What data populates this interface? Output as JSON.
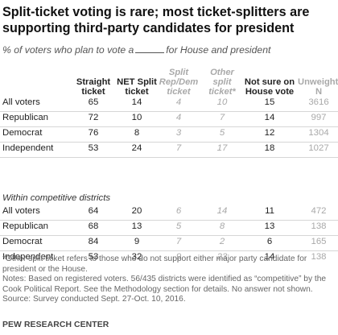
{
  "title": "Split-ticket voting is rare; most ticket-splitters are supporting third-party candidates for president",
  "subtitle_before": "% of voters who plan to vote a",
  "subtitle_after": "for House and president",
  "chart_data": {
    "type": "table",
    "columns": [
      {
        "key": "straight",
        "label": "Straight ticket",
        "style": "bold"
      },
      {
        "key": "net_split",
        "label": "NET Split ticket",
        "style": "bold"
      },
      {
        "key": "rep_dem",
        "label": "Split Rep/Dem ticket",
        "style": "grey"
      },
      {
        "key": "other_split",
        "label": "Other split ticket*",
        "style": "grey"
      },
      {
        "key": "not_sure",
        "label": "Not sure on House vote",
        "style": "bold"
      },
      {
        "key": "unweighted",
        "label": "Unweighted N",
        "style": "unw"
      }
    ],
    "sections": [
      {
        "label": "",
        "rows": [
          {
            "label": "All voters",
            "values": [
              "65",
              "14",
              "4",
              "10",
              "15",
              "3616"
            ]
          },
          {
            "label": "Republican",
            "values": [
              "72",
              "10",
              "4",
              "7",
              "14",
              "997"
            ]
          },
          {
            "label": "Democrat",
            "values": [
              "76",
              "8",
              "3",
              "5",
              "12",
              "1304"
            ]
          },
          {
            "label": "Independent",
            "values": [
              "53",
              "24",
              "7",
              "17",
              "18",
              "1027"
            ]
          }
        ]
      },
      {
        "label": "Within competitive districts",
        "rows": [
          {
            "label": "All voters",
            "values": [
              "64",
              "20",
              "6",
              "14",
              "11",
              "472"
            ]
          },
          {
            "label": "Republican",
            "values": [
              "68",
              "13",
              "5",
              "8",
              "13",
              "138"
            ]
          },
          {
            "label": "Democrat",
            "values": [
              "84",
              "9",
              "7",
              "2",
              "6",
              "165"
            ]
          },
          {
            "label": "Independent",
            "values": [
              "53",
              "32",
              "9",
              "23",
              "14",
              "138"
            ]
          }
        ]
      }
    ]
  },
  "notes": [
    "*Other split ticket refers to those who do not support either major party candidate for president or the House.",
    "Notes: Based on registered voters. 56/435 districts were identified as “competitive” by the Cook Political Report. See the Methodology section for details. No answer not shown.",
    "Source: Survey conducted Sept. 27-Oct. 10, 2016."
  ],
  "brand": "PEW RESEARCH CENTER",
  "colors": {
    "text": "#222222",
    "muted": "#a9a9a9",
    "rule": "#d6d6d6"
  }
}
